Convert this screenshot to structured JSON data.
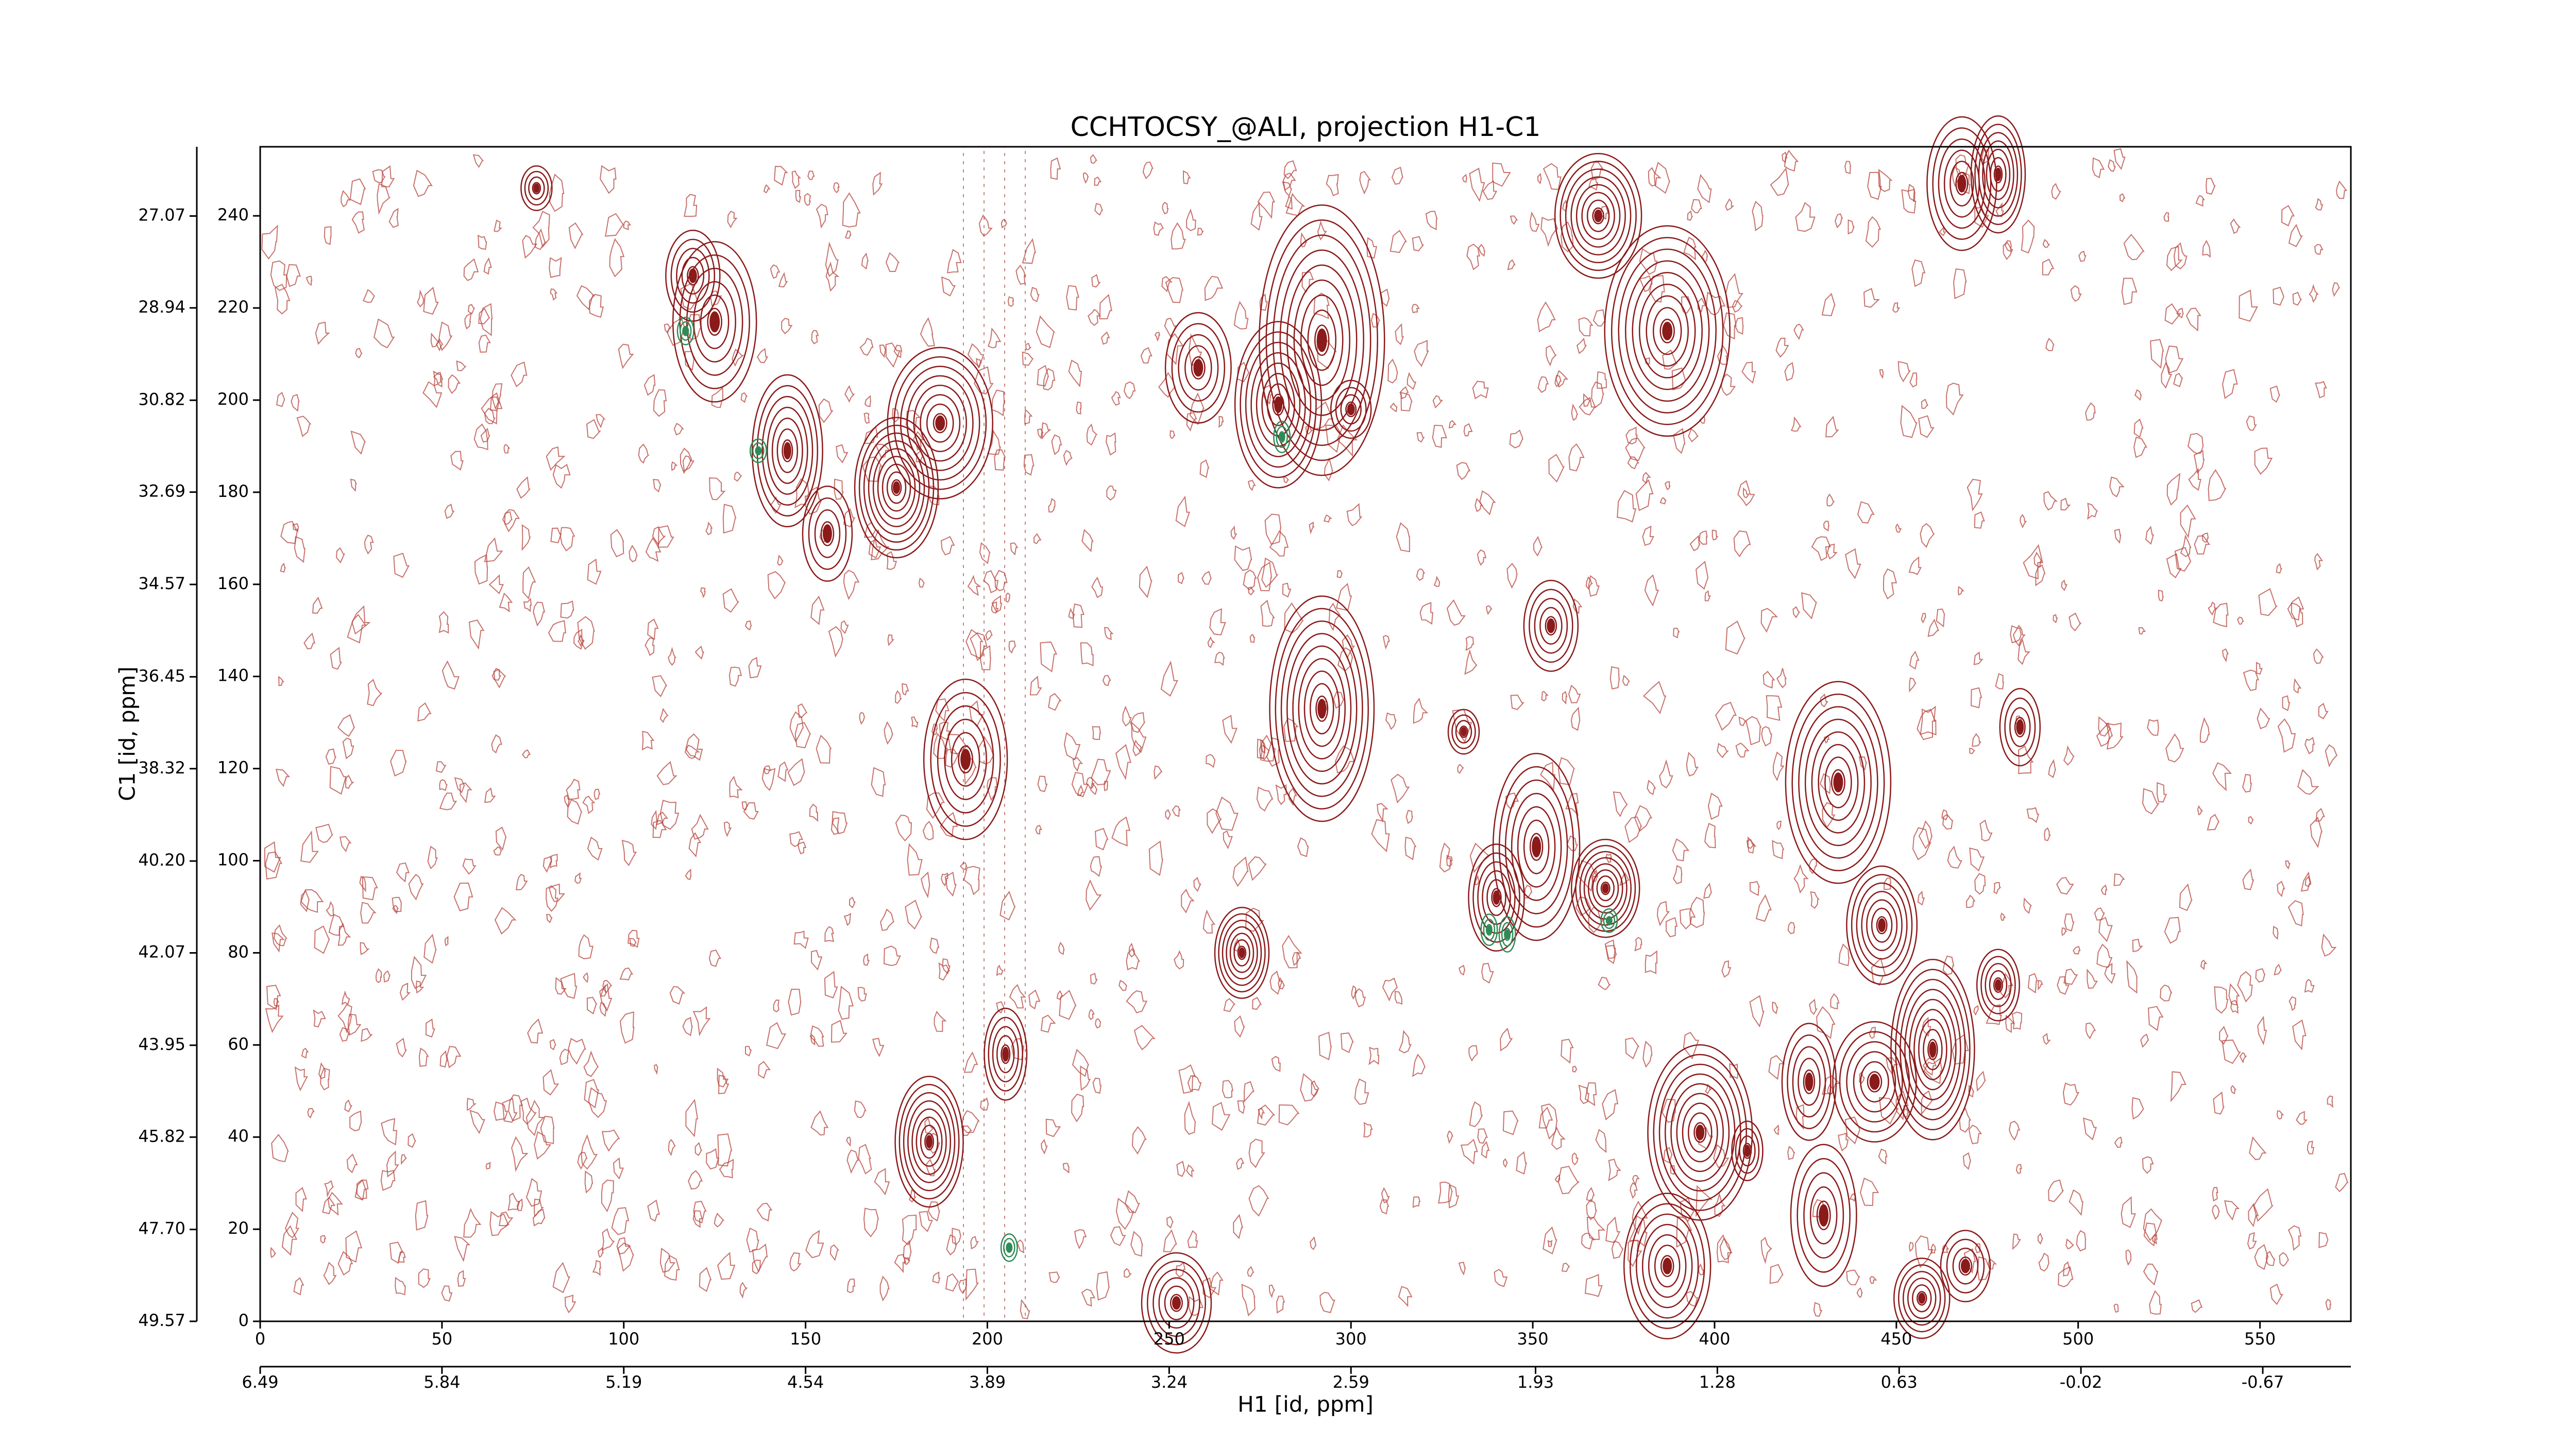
{
  "chart_data": {
    "type": "contour",
    "title": "CCHTOCSY_@ALI, projection H1-C1",
    "xlabel": "H1 [id, ppm]",
    "ylabel": "C1 [id, ppm]",
    "xlim": [
      0,
      575
    ],
    "ylim": [
      0,
      255
    ],
    "xticks": [
      0,
      50,
      100,
      150,
      200,
      250,
      300,
      350,
      400,
      450,
      500,
      550
    ],
    "yticks": [
      0,
      20,
      40,
      60,
      80,
      100,
      120,
      140,
      160,
      180,
      200,
      220,
      240
    ],
    "x2lim": [
      6.49,
      -0.985
    ],
    "x2ticks": [
      6.49,
      5.84,
      5.19,
      4.54,
      3.89,
      3.24,
      2.59,
      1.93,
      1.28,
      0.63,
      {
        "value": -0.02,
        "label": "-0.02"
      },
      -0.67
    ],
    "y2lim": [
      49.57,
      25.66
    ],
    "y2ticks": [
      49.57,
      {
        "value": 47.7,
        "label": "47.70"
      },
      45.82,
      43.95,
      42.07,
      {
        "value": 40.2,
        "label": "40.20"
      },
      38.32,
      36.45,
      34.57,
      32.69,
      30.82,
      28.94,
      27.07
    ],
    "series": [
      {
        "color": "#8b1a1a",
        "x": [
          76,
          119,
          125,
          145,
          187,
          175,
          156,
          205,
          252,
          270,
          280,
          292,
          300,
          258,
          340,
          351,
          370,
          396,
          409,
          426,
          444,
          446,
          434,
          460,
          469,
          478,
          468,
          478,
          368,
          387,
          484,
          430,
          457,
          387,
          184,
          292,
          331,
          355,
          194
        ],
        "y": [
          246,
          227,
          217,
          189,
          195,
          181,
          171,
          58,
          4,
          80,
          199,
          213,
          198,
          207,
          92,
          103,
          94,
          41,
          37,
          52,
          52,
          86,
          117,
          59,
          12,
          73,
          247,
          249,
          240,
          215,
          129,
          23,
          5,
          12,
          39,
          133,
          128,
          151,
          122
        ]
      },
      {
        "color": "#2e8b57",
        "x": [
          137,
          117,
          338,
          343,
          371,
          206,
          281
        ],
        "y": [
          189,
          215,
          85,
          84,
          87,
          16,
          192
        ]
      }
    ]
  }
}
